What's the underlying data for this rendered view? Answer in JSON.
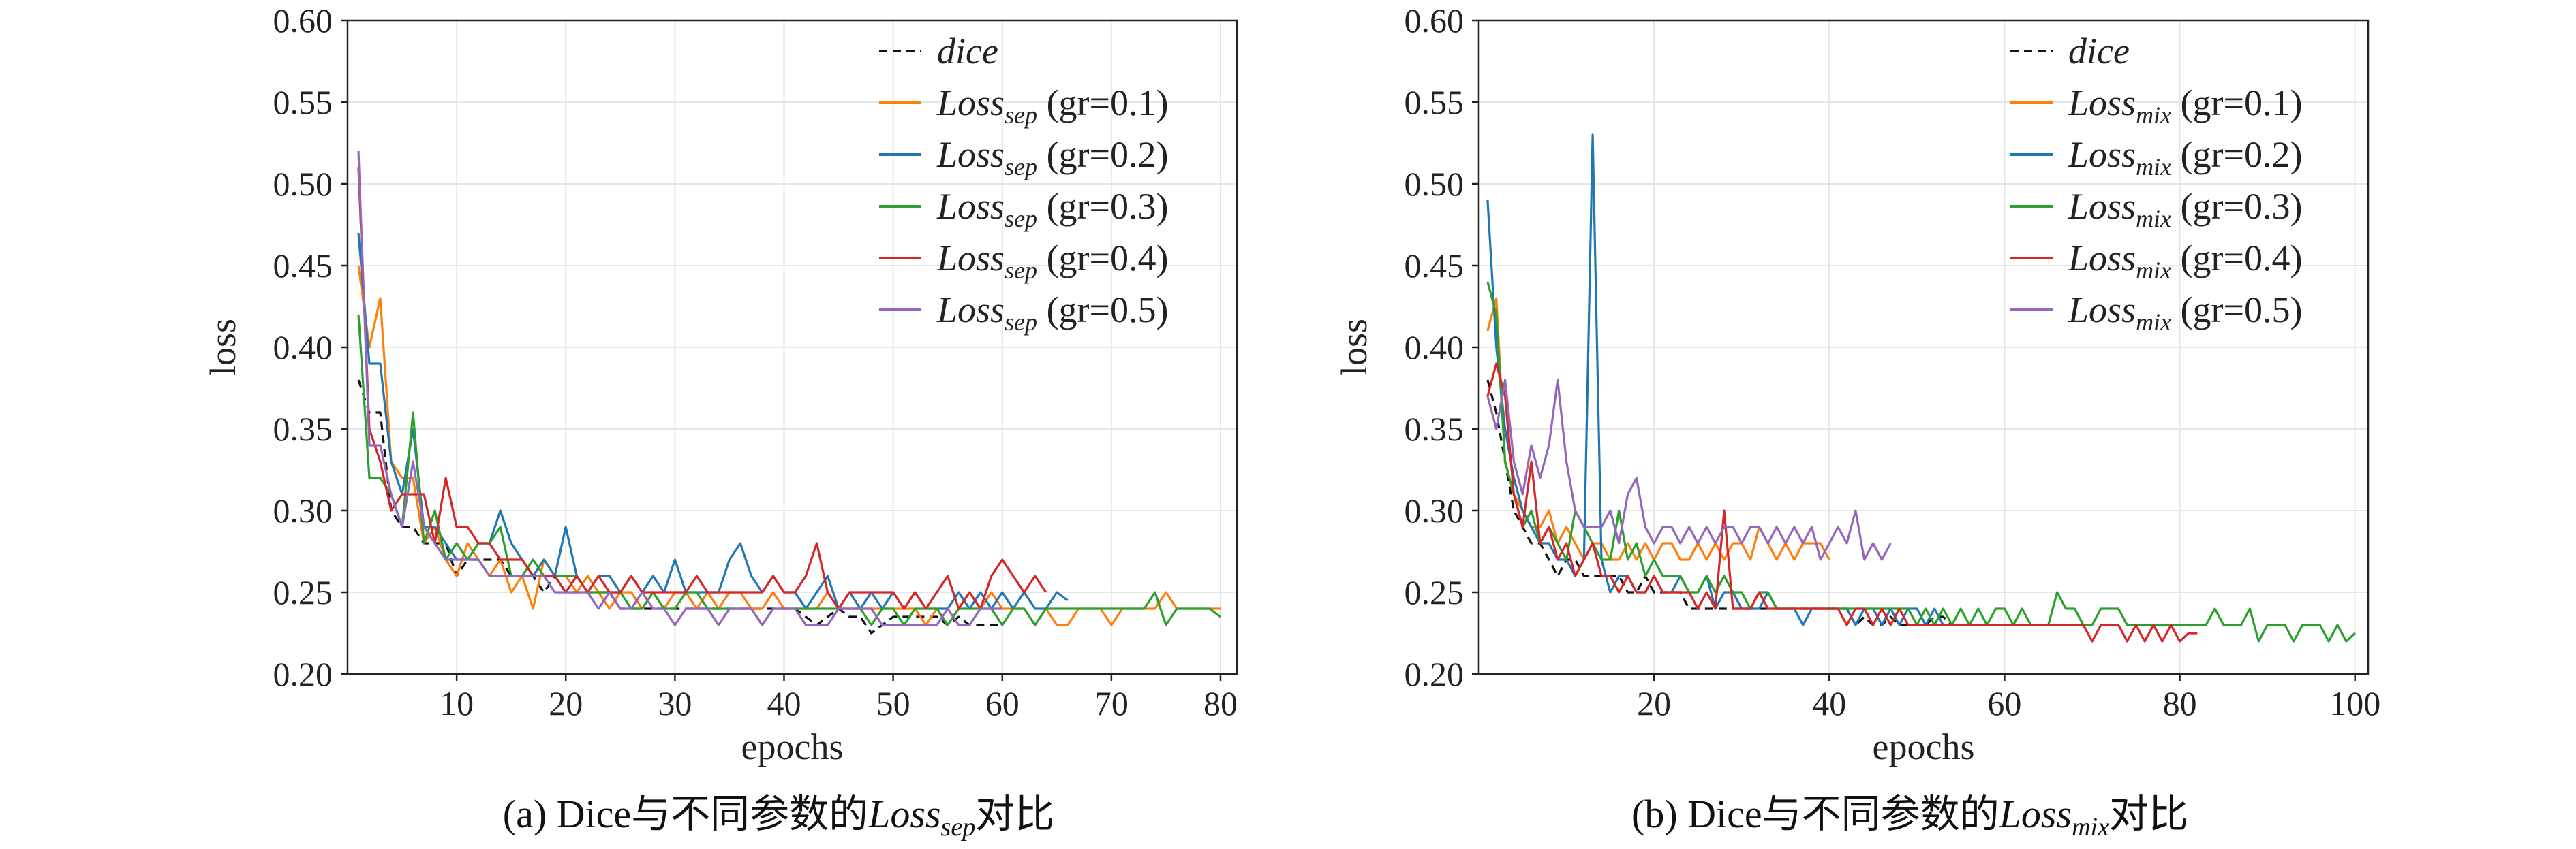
{
  "chart_data": [
    {
      "type": "line",
      "caption": {
        "prefix": "(a) Dice与不同参数的",
        "loss_main": "Loss",
        "loss_sub": "sep",
        "suffix": "对比"
      },
      "xlabel": "epochs",
      "ylabel": "loss",
      "xlim": [
        0,
        81.5
      ],
      "ylim": [
        0.2,
        0.6
      ],
      "xticks": [
        10,
        20,
        30,
        40,
        50,
        60,
        70,
        80
      ],
      "yticks": [
        0.2,
        0.25,
        0.3,
        0.35,
        0.4,
        0.45,
        0.5,
        0.55,
        0.6
      ],
      "grid": true,
      "legend_position": "top-right",
      "series": [
        {
          "name": "dice",
          "legend_main": "dice",
          "legend_sub": "",
          "legend_suffix": "",
          "color": "#111111",
          "dashed": true,
          "values": [
            0.38,
            0.36,
            0.36,
            0.3,
            0.29,
            0.29,
            0.28,
            0.28,
            0.28,
            0.26,
            0.27,
            0.27,
            0.27,
            0.27,
            0.26,
            0.26,
            0.26,
            0.25,
            0.26,
            0.25,
            0.25,
            0.25,
            0.25,
            0.25,
            0.24,
            0.24,
            0.24,
            0.24,
            0.24,
            0.24,
            0.24,
            0.24,
            0.24,
            0.24,
            0.24,
            0.24,
            0.24,
            0.24,
            0.24,
            0.24,
            0.24,
            0.235,
            0.23,
            0.235,
            0.24,
            0.235,
            0.235,
            0.225,
            0.23,
            0.235,
            0.235,
            0.235,
            0.235,
            0.235,
            0.23,
            0.235,
            0.23,
            0.23,
            0.23,
            0.23
          ]
        },
        {
          "name": "Loss_sep (gr=0.1)",
          "legend_main": "Loss",
          "legend_sub": "sep",
          "legend_suffix": " (gr=0.1)",
          "color": "#ff7f0e",
          "values": [
            0.45,
            0.4,
            0.43,
            0.33,
            0.32,
            0.32,
            0.28,
            0.29,
            0.27,
            0.26,
            0.28,
            0.27,
            0.26,
            0.27,
            0.25,
            0.26,
            0.24,
            0.27,
            0.26,
            0.26,
            0.25,
            0.26,
            0.25,
            0.24,
            0.25,
            0.25,
            0.24,
            0.25,
            0.24,
            0.25,
            0.25,
            0.24,
            0.25,
            0.24,
            0.25,
            0.25,
            0.24,
            0.24,
            0.25,
            0.24,
            0.24,
            0.24,
            0.24,
            0.25,
            0.24,
            0.24,
            0.24,
            0.24,
            0.24,
            0.24,
            0.24,
            0.24,
            0.23,
            0.24,
            0.23,
            0.24,
            0.25,
            0.24,
            0.25,
            0.24,
            0.24,
            0.24,
            0.23,
            0.24,
            0.23,
            0.23,
            0.24,
            0.24,
            0.24,
            0.23,
            0.24,
            0.24,
            0.24,
            0.24,
            0.25,
            0.24,
            0.24,
            0.24,
            0.24,
            0.24
          ]
        },
        {
          "name": "Loss_sep (gr=0.2)",
          "legend_main": "Loss",
          "legend_sub": "sep",
          "legend_suffix": " (gr=0.2)",
          "color": "#1f77b4",
          "values": [
            0.47,
            0.39,
            0.39,
            0.33,
            0.31,
            0.35,
            0.29,
            0.29,
            0.28,
            0.27,
            0.27,
            0.28,
            0.28,
            0.3,
            0.28,
            0.27,
            0.26,
            0.27,
            0.26,
            0.29,
            0.26,
            0.25,
            0.26,
            0.26,
            0.25,
            0.26,
            0.25,
            0.26,
            0.25,
            0.27,
            0.25,
            0.25,
            0.25,
            0.25,
            0.27,
            0.28,
            0.26,
            0.25,
            0.26,
            0.25,
            0.25,
            0.24,
            0.25,
            0.26,
            0.24,
            0.25,
            0.24,
            0.25,
            0.24,
            0.25,
            0.24,
            0.25,
            0.24,
            0.24,
            0.24,
            0.25,
            0.24,
            0.25,
            0.24,
            0.25,
            0.24,
            0.25,
            0.24,
            0.24,
            0.25,
            0.245
          ]
        },
        {
          "name": "Loss_sep (gr=0.3)",
          "legend_main": "Loss",
          "legend_sub": "sep",
          "legend_suffix": " (gr=0.3)",
          "color": "#2ca02c",
          "values": [
            0.42,
            0.32,
            0.32,
            0.31,
            0.29,
            0.36,
            0.28,
            0.3,
            0.27,
            0.28,
            0.27,
            0.28,
            0.28,
            0.29,
            0.26,
            0.26,
            0.27,
            0.26,
            0.26,
            0.26,
            0.26,
            0.25,
            0.25,
            0.25,
            0.25,
            0.24,
            0.24,
            0.25,
            0.24,
            0.24,
            0.25,
            0.25,
            0.24,
            0.24,
            0.24,
            0.24,
            0.24,
            0.23,
            0.24,
            0.24,
            0.24,
            0.24,
            0.24,
            0.24,
            0.24,
            0.24,
            0.24,
            0.23,
            0.24,
            0.24,
            0.23,
            0.24,
            0.24,
            0.24,
            0.23,
            0.24,
            0.24,
            0.24,
            0.24,
            0.23,
            0.24,
            0.24,
            0.23,
            0.24,
            0.24,
            0.24,
            0.24,
            0.24,
            0.24,
            0.24,
            0.24,
            0.24,
            0.24,
            0.25,
            0.23,
            0.24,
            0.24,
            0.24,
            0.24,
            0.235
          ]
        },
        {
          "name": "Loss_sep (gr=0.4)",
          "legend_main": "Loss",
          "legend_sub": "sep",
          "legend_suffix": " (gr=0.4)",
          "color": "#d62728",
          "values": [
            0.51,
            0.35,
            0.33,
            0.3,
            0.31,
            0.31,
            0.31,
            0.28,
            0.32,
            0.29,
            0.29,
            0.28,
            0.28,
            0.27,
            0.27,
            0.27,
            0.26,
            0.26,
            0.26,
            0.25,
            0.26,
            0.25,
            0.26,
            0.25,
            0.25,
            0.26,
            0.25,
            0.25,
            0.25,
            0.25,
            0.25,
            0.26,
            0.25,
            0.25,
            0.25,
            0.25,
            0.25,
            0.25,
            0.26,
            0.25,
            0.25,
            0.26,
            0.28,
            0.25,
            0.24,
            0.25,
            0.25,
            0.25,
            0.25,
            0.25,
            0.24,
            0.25,
            0.24,
            0.25,
            0.26,
            0.24,
            0.25,
            0.24,
            0.26,
            0.27,
            0.26,
            0.25,
            0.26,
            0.25
          ]
        },
        {
          "name": "Loss_sep (gr=0.5)",
          "legend_main": "Loss",
          "legend_sub": "sep",
          "legend_suffix": " (gr=0.5)",
          "color": "#9467bd",
          "values": [
            0.52,
            0.34,
            0.34,
            0.31,
            0.29,
            0.33,
            0.29,
            0.28,
            0.27,
            0.27,
            0.27,
            0.27,
            0.26,
            0.26,
            0.26,
            0.26,
            0.26,
            0.26,
            0.25,
            0.25,
            0.25,
            0.25,
            0.24,
            0.25,
            0.24,
            0.24,
            0.25,
            0.24,
            0.24,
            0.23,
            0.24,
            0.24,
            0.24,
            0.23,
            0.24,
            0.24,
            0.24,
            0.23,
            0.24,
            0.24,
            0.24,
            0.23,
            0.23,
            0.23,
            0.24,
            0.24,
            0.24,
            0.24,
            0.23,
            0.23,
            0.23,
            0.23,
            0.23,
            0.23,
            0.24,
            0.23,
            0.23,
            0.24,
            0.24,
            0.24
          ]
        }
      ]
    },
    {
      "type": "line",
      "caption": {
        "prefix": "(b) Dice与不同参数的",
        "loss_main": "Loss",
        "loss_sub": "mix",
        "suffix": "对比"
      },
      "xlabel": "epochs",
      "ylabel": "loss",
      "xlim": [
        0,
        101.5
      ],
      "ylim": [
        0.2,
        0.6
      ],
      "xticks": [
        20,
        40,
        60,
        80,
        100
      ],
      "yticks": [
        0.2,
        0.25,
        0.3,
        0.35,
        0.4,
        0.45,
        0.5,
        0.55,
        0.6
      ],
      "grid": true,
      "legend_position": "top-right",
      "series": [
        {
          "name": "dice",
          "legend_main": "dice",
          "legend_sub": "",
          "legend_suffix": "",
          "color": "#111111",
          "dashed": true,
          "values": [
            0.38,
            0.36,
            0.33,
            0.3,
            0.29,
            0.28,
            0.28,
            0.27,
            0.26,
            0.27,
            0.27,
            0.26,
            0.26,
            0.26,
            0.26,
            0.26,
            0.25,
            0.25,
            0.26,
            0.25,
            0.25,
            0.25,
            0.25,
            0.24,
            0.24,
            0.24,
            0.24,
            0.24,
            0.24,
            0.24,
            0.24,
            0.24,
            0.24,
            0.24,
            0.24,
            0.24,
            0.24,
            0.24,
            0.24,
            0.24,
            0.24,
            0.24,
            0.23,
            0.235,
            0.23,
            0.23,
            0.235,
            0.23,
            0.23,
            0.23,
            0.23,
            0.235,
            0.235,
            0.23,
            0.23,
            0.23,
            0.23,
            0.23,
            0.23,
            0.23
          ]
        },
        {
          "name": "Loss_mix (gr=0.1)",
          "legend_main": "Loss",
          "legend_sub": "mix",
          "legend_suffix": " (gr=0.1)",
          "color": "#ff7f0e",
          "values": [
            0.41,
            0.43,
            0.33,
            0.31,
            0.3,
            0.29,
            0.29,
            0.3,
            0.28,
            0.29,
            0.28,
            0.27,
            0.28,
            0.28,
            0.27,
            0.27,
            0.28,
            0.27,
            0.28,
            0.27,
            0.28,
            0.28,
            0.27,
            0.27,
            0.28,
            0.27,
            0.28,
            0.27,
            0.28,
            0.28,
            0.27,
            0.29,
            0.28,
            0.27,
            0.28,
            0.27,
            0.28,
            0.28,
            0.28,
            0.27
          ]
        },
        {
          "name": "Loss_mix (gr=0.2)",
          "legend_main": "Loss",
          "legend_sub": "mix",
          "legend_suffix": " (gr=0.2)",
          "color": "#1f77b4",
          "values": [
            0.49,
            0.4,
            0.35,
            0.32,
            0.3,
            0.29,
            0.28,
            0.28,
            0.27,
            0.27,
            0.26,
            0.27,
            0.53,
            0.27,
            0.25,
            0.26,
            0.26,
            0.25,
            0.25,
            0.26,
            0.25,
            0.25,
            0.26,
            0.25,
            0.25,
            0.26,
            0.24,
            0.25,
            0.25,
            0.24,
            0.24,
            0.24,
            0.25,
            0.24,
            0.24,
            0.24,
            0.23,
            0.24,
            0.24,
            0.24,
            0.24,
            0.24,
            0.23,
            0.24,
            0.24,
            0.23,
            0.24,
            0.23,
            0.24,
            0.24,
            0.23,
            0.24,
            0.23,
            0.23,
            0.23,
            0.23
          ]
        },
        {
          "name": "Loss_mix (gr=0.3)",
          "legend_main": "Loss",
          "legend_sub": "mix",
          "legend_suffix": " (gr=0.3)",
          "color": "#2ca02c",
          "values": [
            0.44,
            0.42,
            0.33,
            0.31,
            0.29,
            0.3,
            0.28,
            0.29,
            0.28,
            0.27,
            0.3,
            0.29,
            0.28,
            0.27,
            0.27,
            0.3,
            0.27,
            0.28,
            0.26,
            0.27,
            0.26,
            0.26,
            0.26,
            0.25,
            0.25,
            0.26,
            0.25,
            0.26,
            0.25,
            0.25,
            0.24,
            0.25,
            0.25,
            0.24,
            0.24,
            0.24,
            0.24,
            0.24,
            0.24,
            0.24,
            0.24,
            0.24,
            0.24,
            0.24,
            0.24,
            0.24,
            0.24,
            0.24,
            0.24,
            0.23,
            0.24,
            0.23,
            0.24,
            0.23,
            0.24,
            0.23,
            0.24,
            0.23,
            0.24,
            0.24,
            0.23,
            0.24,
            0.23,
            0.23,
            0.23,
            0.25,
            0.24,
            0.24,
            0.23,
            0.23,
            0.24,
            0.24,
            0.24,
            0.23,
            0.23,
            0.23,
            0.23,
            0.23,
            0.23,
            0.23,
            0.23,
            0.23,
            0.23,
            0.24,
            0.23,
            0.23,
            0.23,
            0.24,
            0.22,
            0.23,
            0.23,
            0.23,
            0.22,
            0.23,
            0.23,
            0.23,
            0.22,
            0.23,
            0.22,
            0.225
          ]
        },
        {
          "name": "Loss_mix (gr=0.4)",
          "legend_main": "Loss",
          "legend_sub": "mix",
          "legend_suffix": " (gr=0.4)",
          "color": "#d62728",
          "values": [
            0.37,
            0.39,
            0.37,
            0.31,
            0.29,
            0.33,
            0.28,
            0.29,
            0.27,
            0.28,
            0.26,
            0.27,
            0.28,
            0.26,
            0.26,
            0.25,
            0.26,
            0.25,
            0.25,
            0.26,
            0.25,
            0.25,
            0.25,
            0.25,
            0.24,
            0.25,
            0.24,
            0.3,
            0.24,
            0.24,
            0.24,
            0.25,
            0.24,
            0.24,
            0.24,
            0.24,
            0.24,
            0.24,
            0.24,
            0.24,
            0.24,
            0.23,
            0.24,
            0.24,
            0.23,
            0.24,
            0.23,
            0.24,
            0.23,
            0.23,
            0.23,
            0.23,
            0.23,
            0.23,
            0.23,
            0.23,
            0.23,
            0.23,
            0.23,
            0.23,
            0.23,
            0.23,
            0.23,
            0.23,
            0.23,
            0.23,
            0.23,
            0.23,
            0.23,
            0.22,
            0.23,
            0.23,
            0.23,
            0.22,
            0.23,
            0.22,
            0.23,
            0.22,
            0.23,
            0.22,
            0.225,
            0.225
          ]
        },
        {
          "name": "Loss_mix (gr=0.5)",
          "legend_main": "Loss",
          "legend_sub": "mix",
          "legend_suffix": " (gr=0.5)",
          "color": "#9467bd",
          "values": [
            0.37,
            0.35,
            0.38,
            0.33,
            0.31,
            0.34,
            0.32,
            0.34,
            0.38,
            0.33,
            0.3,
            0.29,
            0.29,
            0.29,
            0.3,
            0.28,
            0.31,
            0.32,
            0.29,
            0.28,
            0.29,
            0.29,
            0.28,
            0.29,
            0.28,
            0.29,
            0.28,
            0.29,
            0.29,
            0.28,
            0.29,
            0.29,
            0.28,
            0.29,
            0.28,
            0.29,
            0.28,
            0.29,
            0.27,
            0.28,
            0.29,
            0.28,
            0.3,
            0.27,
            0.28,
            0.27,
            0.28
          ]
        }
      ]
    }
  ]
}
